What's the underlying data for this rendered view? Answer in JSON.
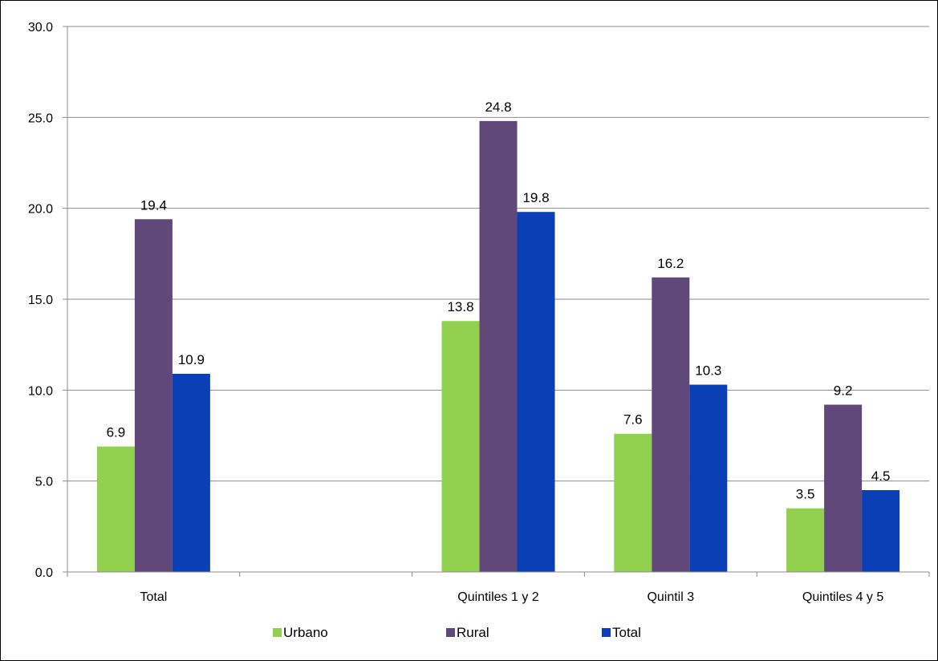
{
  "chart_data": {
    "type": "bar",
    "categories": [
      "Total",
      "",
      "Quintiles 1 y 2",
      "Quintil 3",
      "Quintiles 4 y 5"
    ],
    "series": [
      {
        "name": "Urbano",
        "color": "#92D050",
        "values": [
          6.9,
          null,
          13.8,
          7.6,
          3.5
        ]
      },
      {
        "name": "Rural",
        "color": "#60497A",
        "values": [
          19.4,
          null,
          24.8,
          16.2,
          9.2
        ]
      },
      {
        "name": "Total",
        "color": "#0A3FB5",
        "values": [
          10.9,
          null,
          19.8,
          10.3,
          4.5
        ]
      }
    ],
    "value_labels": [
      [
        "6.9",
        null,
        "13.8",
        "7.6",
        "3.5"
      ],
      [
        "19.4",
        null,
        "24.8",
        "16.2",
        "9.2"
      ],
      [
        "10.9",
        null,
        "19.8",
        "10.3",
        "4.5"
      ]
    ],
    "y_ticks": [
      "0.0",
      "5.0",
      "10.0",
      "15.0",
      "20.0",
      "25.0",
      "30.0"
    ],
    "ylim": [
      0,
      30
    ],
    "grid": true,
    "legend_position": "bottom",
    "title": "",
    "xlabel": "",
    "ylabel": ""
  }
}
